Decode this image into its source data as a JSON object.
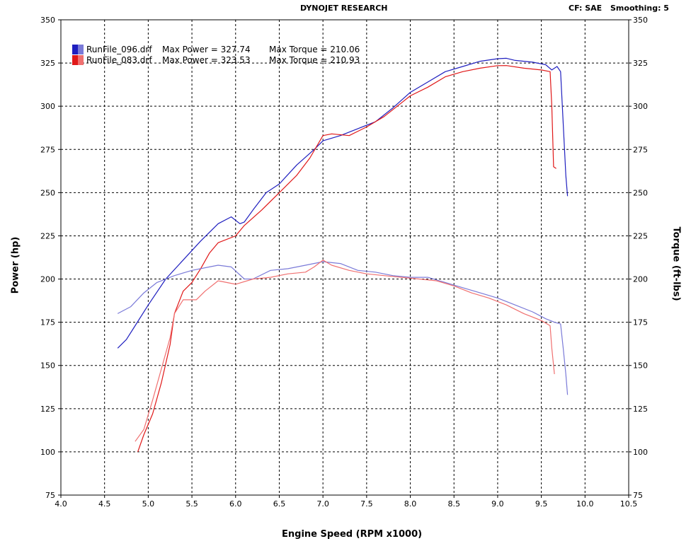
{
  "header": {
    "title": "DYNOJET RESEARCH",
    "cf_label": "CF: SAE",
    "smoothing_label": "Smoothing: 5"
  },
  "colors": {
    "run096": "#1f1fbf",
    "run083": "#e01818",
    "run096_torque": "#7a7ad8",
    "run083_torque": "#f07070",
    "plot_border": "#000000"
  },
  "chart_data": {
    "type": "line",
    "title": "DYNOJET RESEARCH",
    "xlabel": "Engine Speed (RPM x1000)",
    "ylabel": "Power (hp)",
    "y2label": "Torque (ft-lbs)",
    "xlim": [
      4.0,
      10.5
    ],
    "ylim": [
      75,
      350
    ],
    "y2lim": [
      75,
      350
    ],
    "x_ticks": [
      "4.0",
      "4.5",
      "5.0",
      "5.5",
      "6.0",
      "6.5",
      "7.0",
      "7.5",
      "8.0",
      "8.5",
      "9.0",
      "9.5",
      "10.0",
      "10.5"
    ],
    "y_ticks": [
      "75",
      "100",
      "125",
      "150",
      "175",
      "200",
      "225",
      "250",
      "275",
      "300",
      "325",
      "350"
    ],
    "grid": true,
    "legend_position": "top-left",
    "legend": [
      {
        "file": "RunFile_096.drf",
        "power_text": "Max Power = 327.74",
        "torque_text": "Max Torque = 210.06"
      },
      {
        "file": "RunFile_083.drf",
        "power_text": "Max Power = 323.53",
        "torque_text": "Max Torque = 210.93"
      }
    ],
    "series": [
      {
        "name": "RunFile_096.drf",
        "kind": "power",
        "points": [
          [
            4.65,
            160
          ],
          [
            4.75,
            165
          ],
          [
            4.85,
            173
          ],
          [
            5.0,
            185
          ],
          [
            5.2,
            200
          ],
          [
            5.4,
            211
          ],
          [
            5.6,
            222
          ],
          [
            5.8,
            232
          ],
          [
            5.95,
            236
          ],
          [
            6.05,
            232
          ],
          [
            6.1,
            233
          ],
          [
            6.2,
            240
          ],
          [
            6.35,
            250
          ],
          [
            6.5,
            255
          ],
          [
            6.7,
            266
          ],
          [
            6.9,
            275
          ],
          [
            7.0,
            280
          ],
          [
            7.2,
            283
          ],
          [
            7.4,
            287
          ],
          [
            7.6,
            291
          ],
          [
            7.8,
            299
          ],
          [
            8.0,
            308
          ],
          [
            8.2,
            314
          ],
          [
            8.4,
            320
          ],
          [
            8.6,
            323
          ],
          [
            8.8,
            326
          ],
          [
            9.0,
            327.5
          ],
          [
            9.1,
            327.74
          ],
          [
            9.2,
            326.5
          ],
          [
            9.4,
            325.5
          ],
          [
            9.55,
            324
          ],
          [
            9.62,
            321
          ],
          [
            9.68,
            323
          ],
          [
            9.72,
            320
          ],
          [
            9.75,
            290
          ],
          [
            9.78,
            260
          ],
          [
            9.8,
            248
          ]
        ]
      },
      {
        "name": "RunFile_083.drf",
        "kind": "power",
        "points": [
          [
            4.88,
            100
          ],
          [
            4.95,
            110
          ],
          [
            5.05,
            122
          ],
          [
            5.15,
            140
          ],
          [
            5.25,
            162
          ],
          [
            5.3,
            180
          ],
          [
            5.4,
            193
          ],
          [
            5.5,
            198
          ],
          [
            5.6,
            206
          ],
          [
            5.7,
            215
          ],
          [
            5.8,
            221
          ],
          [
            6.0,
            225
          ],
          [
            6.1,
            231
          ],
          [
            6.3,
            240
          ],
          [
            6.5,
            250
          ],
          [
            6.7,
            260
          ],
          [
            6.85,
            270
          ],
          [
            7.0,
            283
          ],
          [
            7.1,
            284
          ],
          [
            7.3,
            283
          ],
          [
            7.5,
            288
          ],
          [
            7.7,
            294
          ],
          [
            7.9,
            302
          ],
          [
            8.0,
            306
          ],
          [
            8.2,
            311
          ],
          [
            8.4,
            317
          ],
          [
            8.6,
            320
          ],
          [
            8.8,
            322
          ],
          [
            9.0,
            323.5
          ],
          [
            9.1,
            323.53
          ],
          [
            9.3,
            322
          ],
          [
            9.5,
            321
          ],
          [
            9.6,
            320
          ],
          [
            9.62,
            300
          ],
          [
            9.64,
            265
          ],
          [
            9.67,
            264
          ]
        ]
      },
      {
        "name": "RunFile_096.drf",
        "kind": "torque",
        "points": [
          [
            4.65,
            180
          ],
          [
            4.8,
            184
          ],
          [
            4.95,
            192
          ],
          [
            5.1,
            198
          ],
          [
            5.3,
            202
          ],
          [
            5.5,
            205
          ],
          [
            5.7,
            207
          ],
          [
            5.8,
            208
          ],
          [
            5.95,
            207
          ],
          [
            6.1,
            200
          ],
          [
            6.2,
            200
          ],
          [
            6.4,
            205
          ],
          [
            6.6,
            206
          ],
          [
            6.8,
            208
          ],
          [
            7.0,
            210.06
          ],
          [
            7.2,
            209
          ],
          [
            7.4,
            205
          ],
          [
            7.6,
            204
          ],
          [
            7.8,
            202
          ],
          [
            8.0,
            201
          ],
          [
            8.2,
            201
          ],
          [
            8.4,
            198
          ],
          [
            8.6,
            195
          ],
          [
            8.8,
            192
          ],
          [
            9.0,
            189
          ],
          [
            9.2,
            185
          ],
          [
            9.4,
            181
          ],
          [
            9.55,
            177
          ],
          [
            9.65,
            175
          ],
          [
            9.72,
            174
          ],
          [
            9.75,
            160
          ],
          [
            9.78,
            145
          ],
          [
            9.8,
            133
          ]
        ]
      },
      {
        "name": "RunFile_083.drf",
        "kind": "torque",
        "points": [
          [
            4.85,
            106
          ],
          [
            4.95,
            113
          ],
          [
            5.05,
            130
          ],
          [
            5.15,
            148
          ],
          [
            5.25,
            166
          ],
          [
            5.3,
            180
          ],
          [
            5.4,
            188
          ],
          [
            5.55,
            188
          ],
          [
            5.65,
            193
          ],
          [
            5.8,
            199
          ],
          [
            6.0,
            197
          ],
          [
            6.2,
            200
          ],
          [
            6.4,
            201
          ],
          [
            6.6,
            203
          ],
          [
            6.8,
            204
          ],
          [
            6.9,
            207
          ],
          [
            7.0,
            210.93
          ],
          [
            7.1,
            208
          ],
          [
            7.3,
            205
          ],
          [
            7.5,
            203
          ],
          [
            7.7,
            202
          ],
          [
            7.9,
            201
          ],
          [
            8.1,
            200
          ],
          [
            8.3,
            199
          ],
          [
            8.5,
            196
          ],
          [
            8.7,
            192
          ],
          [
            8.9,
            189
          ],
          [
            9.1,
            185
          ],
          [
            9.3,
            180
          ],
          [
            9.5,
            176
          ],
          [
            9.6,
            173
          ],
          [
            9.62,
            160
          ],
          [
            9.65,
            145
          ]
        ]
      }
    ]
  }
}
